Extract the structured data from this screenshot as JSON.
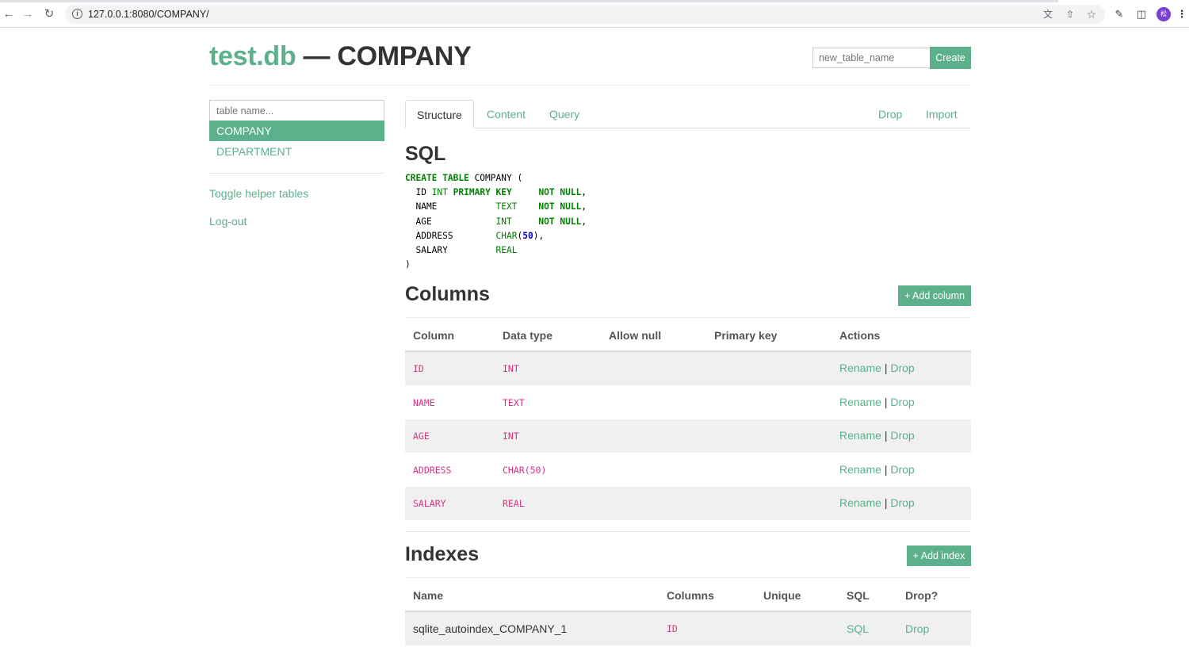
{
  "browser": {
    "url": "127.0.0.1:8080/COMPANY/",
    "avatar_initial": "松"
  },
  "header": {
    "db_name": "test.db",
    "separator": "—",
    "table_name": "COMPANY",
    "new_table_placeholder": "new_table_name",
    "create_label": "Create"
  },
  "sidebar": {
    "search_placeholder": "table name...",
    "tables": [
      {
        "label": "COMPANY",
        "active": true
      },
      {
        "label": "DEPARTMENT",
        "active": false
      }
    ],
    "toggle_helper_label": "Toggle helper tables",
    "logout_label": "Log-out"
  },
  "tabs": {
    "structure": "Structure",
    "content": "Content",
    "query": "Query",
    "drop": "Drop",
    "import": "Import"
  },
  "sql": {
    "heading": "SQL",
    "statement": "CREATE TABLE COMPANY (\n  ID INT PRIMARY KEY     NOT NULL,\n  NAME           TEXT    NOT NULL,\n  AGE            INT     NOT NULL,\n  ADDRESS        CHAR(50),\n  SALARY         REAL\n)"
  },
  "columns": {
    "heading": "Columns",
    "add_label": "+ Add column",
    "headers": [
      "Column",
      "Data type",
      "Allow null",
      "Primary key",
      "Actions"
    ],
    "rows": [
      {
        "name": "ID",
        "type": "INT"
      },
      {
        "name": "NAME",
        "type": "TEXT"
      },
      {
        "name": "AGE",
        "type": "INT"
      },
      {
        "name": "ADDRESS",
        "type": "CHAR(50)"
      },
      {
        "name": "SALARY",
        "type": "REAL"
      }
    ],
    "rename_label": "Rename",
    "action_sep": "|",
    "drop_label": "Drop"
  },
  "indexes": {
    "heading": "Indexes",
    "add_label": "+ Add index",
    "headers": [
      "Name",
      "Columns",
      "Unique",
      "SQL",
      "Drop?"
    ],
    "rows": [
      {
        "name": "sqlite_autoindex_COMPANY_1",
        "columns": "ID",
        "unique": "",
        "sql_label": "SQL",
        "drop_label": "Drop"
      }
    ]
  },
  "colors": {
    "accent": "#5cb08c",
    "code_pink": "#d63384",
    "sql_keyword": "#008000",
    "sql_number": "#0000cc",
    "row_stripe": "#f0f0f0"
  },
  "icons": [
    "back-arrow-icon",
    "forward-arrow-icon",
    "reload-icon",
    "info-icon",
    "translate-icon",
    "share-icon",
    "star-icon",
    "extensions-icon",
    "side-panel-icon",
    "menu-icon"
  ]
}
